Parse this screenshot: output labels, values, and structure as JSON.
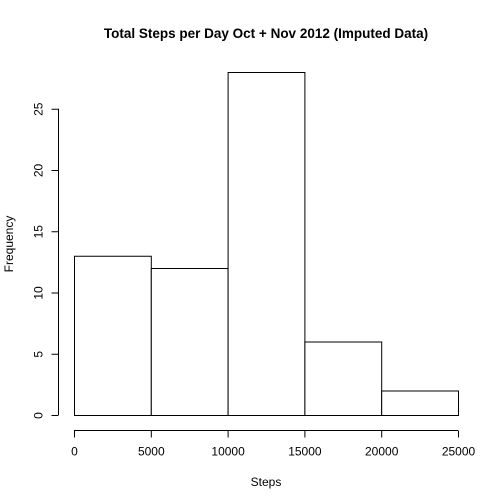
{
  "chart_data": {
    "type": "bar",
    "title": "Total Steps per Day Oct + Nov 2012 (Imputed Data)",
    "xlabel": "Steps",
    "ylabel": "Frequency",
    "bins": [
      {
        "start": 0,
        "end": 5000,
        "value": 13
      },
      {
        "start": 5000,
        "end": 10000,
        "value": 12
      },
      {
        "start": 10000,
        "end": 15000,
        "value": 28
      },
      {
        "start": 15000,
        "end": 20000,
        "value": 6
      },
      {
        "start": 20000,
        "end": 25000,
        "value": 2
      }
    ],
    "xlim": [
      0,
      25000
    ],
    "ylim": [
      0,
      28
    ],
    "x_ticks": [
      0,
      5000,
      10000,
      15000,
      20000,
      25000
    ],
    "y_ticks": [
      0,
      5,
      10,
      15,
      20,
      25
    ],
    "grid": false,
    "legend": "none"
  }
}
